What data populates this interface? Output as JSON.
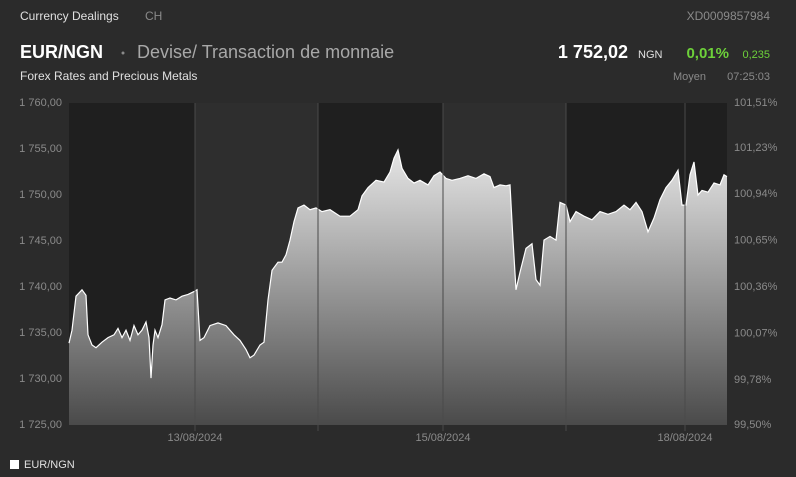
{
  "header": {
    "section": "Currency Dealings",
    "country": "CH",
    "isin": "XD0009857984",
    "symbol": "EUR/NGN",
    "name": "Devise/ Transaction de monnaie",
    "subtitle": "Forex Rates and Precious Metals",
    "price": "1 752,02",
    "currency": "NGN",
    "change_pct": "0,01%",
    "change": "0,235",
    "price_type": "Moyen",
    "time": "07:25:03"
  },
  "chart_data": {
    "type": "area",
    "x": [
      69,
      72,
      76,
      82,
      86,
      88,
      92,
      96,
      102,
      108,
      114,
      118,
      122,
      126,
      130,
      134,
      138,
      142,
      146,
      149,
      151,
      153,
      155,
      158,
      162,
      165,
      170,
      176,
      182,
      188,
      194,
      197,
      200,
      204,
      210,
      218,
      226,
      234,
      240,
      246,
      250,
      254,
      260,
      264,
      268,
      272,
      278,
      282,
      286,
      290,
      294,
      298,
      304,
      310,
      316,
      322,
      330,
      340,
      350,
      358,
      362,
      368,
      376,
      384,
      390,
      394,
      398,
      402,
      408,
      414,
      420,
      428,
      434,
      440,
      446,
      452,
      460,
      468,
      476,
      484,
      490,
      494,
      500,
      506,
      510,
      513,
      516,
      520,
      526,
      532,
      536,
      540,
      544,
      550,
      556,
      560,
      566,
      570,
      576,
      584,
      592,
      600,
      608,
      616,
      624,
      630,
      636,
      642,
      648,
      654,
      660,
      666,
      672,
      678,
      682,
      686,
      690,
      694,
      698,
      702,
      708,
      714,
      720,
      724,
      727
    ],
    "series": [
      {
        "name": "EUR/NGN",
        "color": "#ffffff",
        "values": [
          1733.9,
          1735.3,
          1739.0,
          1739.7,
          1739.1,
          1734.8,
          1733.7,
          1733.4,
          1734.0,
          1734.5,
          1734.8,
          1735.5,
          1734.5,
          1735.3,
          1734.2,
          1735.8,
          1734.8,
          1735.3,
          1736.2,
          1734.5,
          1730.1,
          1733.7,
          1735.3,
          1734.5,
          1735.9,
          1738.6,
          1738.8,
          1738.6,
          1739.0,
          1739.2,
          1739.5,
          1739.7,
          1734.2,
          1734.5,
          1735.8,
          1736.1,
          1735.8,
          1734.8,
          1734.2,
          1733.2,
          1732.3,
          1732.6,
          1733.7,
          1734.0,
          1738.6,
          1741.8,
          1742.7,
          1742.7,
          1743.5,
          1745.1,
          1747.1,
          1748.6,
          1748.9,
          1748.4,
          1748.6,
          1748.2,
          1748.4,
          1747.7,
          1747.7,
          1748.4,
          1749.9,
          1750.8,
          1751.6,
          1751.4,
          1752.5,
          1754.0,
          1754.9,
          1752.9,
          1751.8,
          1751.3,
          1751.6,
          1751.1,
          1752.1,
          1752.5,
          1751.8,
          1751.6,
          1751.8,
          1752.1,
          1751.8,
          1752.3,
          1752.0,
          1750.8,
          1751.1,
          1751.0,
          1751.1,
          1745.1,
          1739.7,
          1741.6,
          1744.2,
          1744.7,
          1740.8,
          1740.2,
          1745.1,
          1745.5,
          1745.1,
          1749.2,
          1748.9,
          1747.1,
          1748.2,
          1747.7,
          1747.3,
          1748.2,
          1747.9,
          1748.2,
          1748.9,
          1748.4,
          1749.2,
          1748.2,
          1746.0,
          1747.5,
          1749.5,
          1750.8,
          1751.6,
          1752.7,
          1748.9,
          1748.9,
          1752.2,
          1753.6,
          1750.0,
          1750.5,
          1750.3,
          1751.3,
          1751.1,
          1752.2,
          1752.0
        ]
      }
    ],
    "xlim": [
      69,
      727
    ],
    "xticks": [
      {
        "value": 195,
        "label": "13/08/2024"
      },
      {
        "value": 318,
        "label": null
      },
      {
        "value": 443,
        "label": "15/08/2024"
      },
      {
        "value": 566,
        "label": null
      },
      {
        "value": 685,
        "label": "18/08/2024"
      }
    ],
    "ylim": [
      1725,
      1760
    ],
    "yticks": [
      {
        "value": 1725,
        "label": "1 725,00"
      },
      {
        "value": 1730,
        "label": "1 730,00"
      },
      {
        "value": 1735,
        "label": "1 735,00"
      },
      {
        "value": 1740,
        "label": "1 740,00"
      },
      {
        "value": 1745,
        "label": "1 745,00"
      },
      {
        "value": 1750,
        "label": "1 750,00"
      },
      {
        "value": 1755,
        "label": "1 755,00"
      },
      {
        "value": 1760,
        "label": "1 760,00"
      }
    ],
    "y2lim": [
      99.5,
      101.51
    ],
    "y2ticks": [
      {
        "value": 99.5,
        "label": "99,50%"
      },
      {
        "value": 99.78,
        "label": "99,78%"
      },
      {
        "value": 100.07,
        "label": "100,07%"
      },
      {
        "value": 100.36,
        "label": "100,36%"
      },
      {
        "value": 100.65,
        "label": "100,65%"
      },
      {
        "value": 100.94,
        "label": "100,94%"
      },
      {
        "value": 101.23,
        "label": "101,23%"
      },
      {
        "value": 101.51,
        "label": "101,51%"
      }
    ],
    "grid": false
  }
}
